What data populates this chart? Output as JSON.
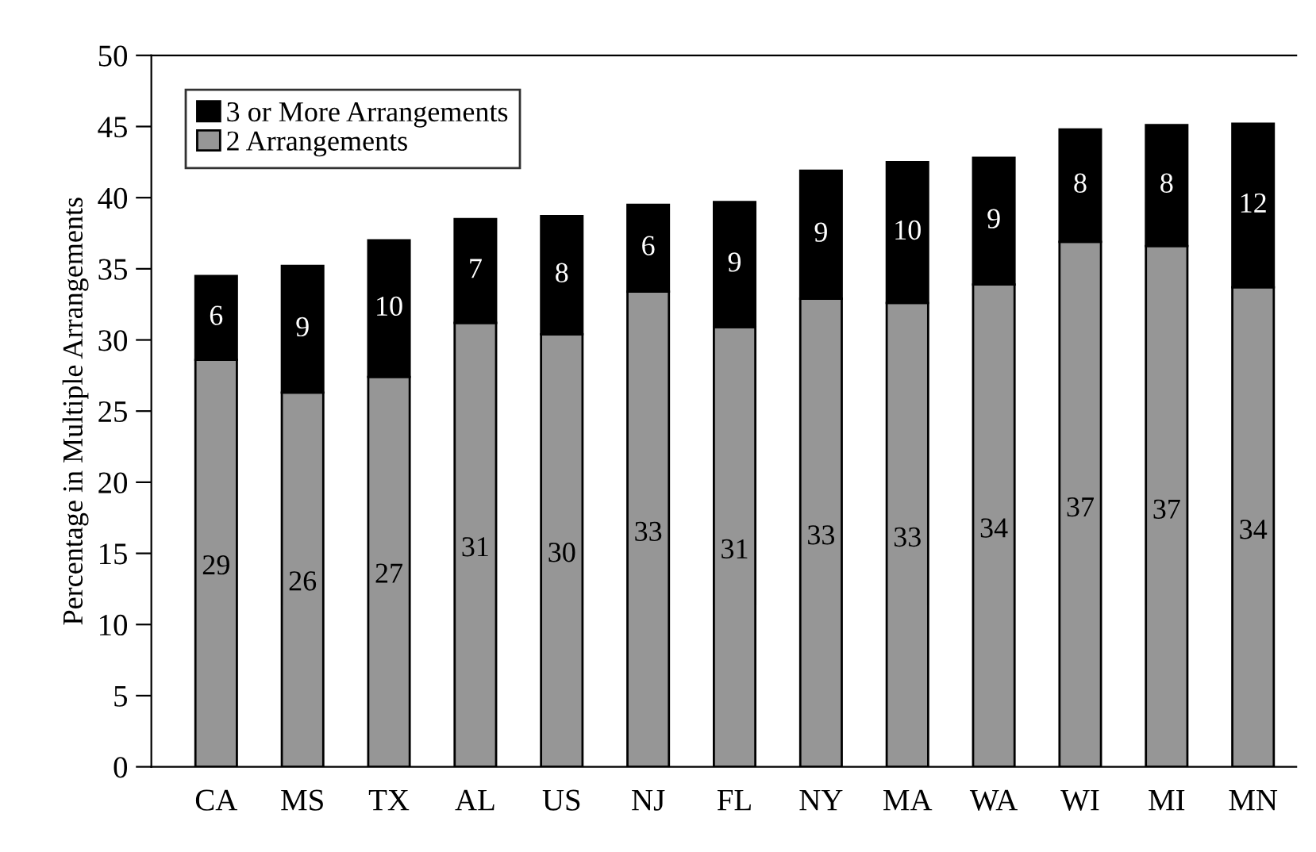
{
  "chart_data": {
    "type": "bar",
    "stacked": true,
    "ylabel": "Percentage in Multiple Arrangements",
    "categories": [
      "CA",
      "MS",
      "TX",
      "AL",
      "US",
      "NJ",
      "FL",
      "NY",
      "MA",
      "WA",
      "WI",
      "MI",
      "MN"
    ],
    "series": [
      {
        "name": "2 Arrangements",
        "color": "#969696",
        "values": [
          28.6,
          26.3,
          27.4,
          31.2,
          30.4,
          33.4,
          30.9,
          32.9,
          32.6,
          33.9,
          36.9,
          36.6,
          33.7
        ],
        "value_labels": [
          "29",
          "26",
          "27",
          "31",
          "30",
          "33",
          "31",
          "33",
          "33",
          "34",
          "37",
          "37",
          "34"
        ]
      },
      {
        "name": "3 or More Arrangements",
        "color": "#000000",
        "values": [
          5.9,
          8.9,
          9.6,
          7.3,
          8.3,
          6.1,
          8.8,
          9.0,
          9.9,
          8.9,
          7.9,
          8.5,
          11.5
        ],
        "value_labels": [
          "6",
          "9",
          "10",
          "7",
          "8",
          "6",
          "9",
          "9",
          "10",
          "9",
          "8",
          "8",
          "12"
        ]
      }
    ],
    "ylim": [
      0,
      50
    ],
    "yticks": [
      0,
      5,
      10,
      15,
      20,
      25,
      30,
      35,
      40,
      45,
      50
    ],
    "grid": false,
    "legend": "top left"
  }
}
